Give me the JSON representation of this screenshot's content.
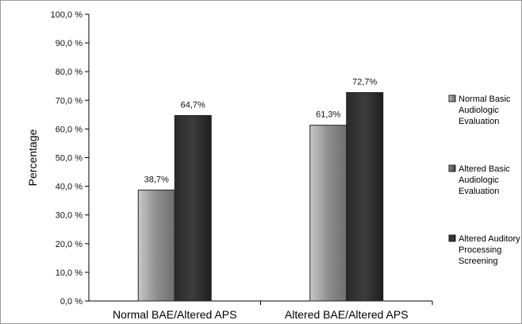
{
  "chart_data": {
    "type": "bar",
    "ylabel": "Percentage",
    "xlabel": "",
    "ylim": [
      0,
      100
    ],
    "yticks": [
      "0,0 %",
      "10,0 %",
      "20,0 %",
      "30,0 %",
      "40,0 %",
      "50,0 %",
      "60,0 %",
      "70,0 %",
      "80,0 %",
      "90,0 %",
      "100,0 %"
    ],
    "categories": [
      "Normal BAE/Altered APS",
      "Altered BAE/Altered APS"
    ],
    "series": [
      {
        "name_lines": [
          "Normal Basic",
          "Audiologic",
          "Evaluation"
        ],
        "values": [
          38.7,
          61.3
        ],
        "labels": [
          "38,7%",
          "61,3%"
        ],
        "color": "#9a9a9a"
      },
      {
        "name_lines": [
          "Altered Auditory",
          "Processing",
          "Screening"
        ],
        "values": [
          64.7,
          72.7
        ],
        "labels": [
          "64,7%",
          "72,7%"
        ],
        "color": "#333333"
      }
    ],
    "legend_only_entries": [
      {
        "name_lines": [
          "Altered Basic",
          "Audiologic",
          "Evaluation"
        ],
        "color": "#5a5a5a"
      }
    ],
    "legend_position": "right",
    "grid": false
  }
}
